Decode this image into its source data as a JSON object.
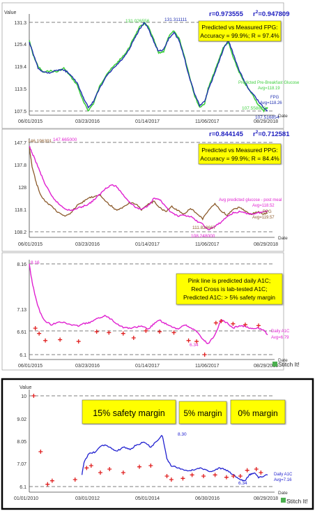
{
  "chart_data": [
    {
      "type": "line",
      "ylabel": "Value",
      "xlabel": "Date",
      "xlim": [
        "2015-06-01",
        "2018-08-29"
      ],
      "ylim": [
        107.5,
        131.3
      ],
      "y_ticks": [
        131.3,
        125.4,
        119.4,
        113.5,
        107.5
      ],
      "x_ticks": [
        "06/01/2015",
        "03/23/2016",
        "01/14/2017",
        "11/06/2017",
        "08/29/2018"
      ],
      "stats": {
        "r": "r=0.973555",
        "r2_prefix": "r",
        "r2_sup": "2",
        "r2_value": "=0.947809"
      },
      "box_lines": [
        "Predicted vs Measured FPG:",
        "Accuracy = 99.9%; R = 97.4%"
      ],
      "annotations": [
        "131.026556",
        "131.311111",
        "107.558820",
        "107.516854"
      ],
      "series": [
        {
          "name": "Predicted Pre-Breakfast Glucose",
          "avg_label": "Avg=118.19",
          "color": "#3fcf3f",
          "x": [
            "2015-06-01",
            "2015-06-20",
            "2015-07-15",
            "2015-08-10",
            "2015-09-10",
            "2015-10-15",
            "2015-11-20",
            "2015-12-20",
            "2016-01-25",
            "2016-02-25",
            "2016-03-20",
            "2016-04-15",
            "2016-05-15",
            "2016-06-20",
            "2016-07-25",
            "2016-08-20",
            "2016-09-15",
            "2016-10-10",
            "2016-11-05",
            "2016-12-01",
            "2016-12-25",
            "2017-01-14",
            "2017-02-10",
            "2017-03-05",
            "2017-03-30",
            "2017-04-25",
            "2017-05-20",
            "2017-06-15",
            "2017-07-10",
            "2017-08-05",
            "2017-09-01",
            "2017-09-25",
            "2017-10-20",
            "2017-11-06",
            "2017-12-01",
            "2017-12-25",
            "2018-01-20",
            "2018-02-15",
            "2018-03-10",
            "2018-04-05",
            "2018-05-01",
            "2018-05-25",
            "2018-06-20",
            "2018-07-15",
            "2018-08-10",
            "2018-08-29"
          ],
          "values": [
            126.5,
            122.5,
            119.5,
            117.8,
            118.3,
            118.0,
            119.0,
            117.0,
            114.5,
            110.0,
            107.6,
            109.5,
            114.0,
            117.5,
            119.5,
            121.0,
            122.5,
            124.5,
            127.5,
            130.0,
            131.0,
            130.0,
            126.5,
            123.0,
            123.5,
            127.5,
            129.0,
            127.0,
            122.5,
            117.0,
            111.5,
            108.5,
            109.5,
            113.5,
            117.0,
            120.5,
            124.5,
            126.0,
            122.0,
            118.5,
            115.5,
            113.5,
            111.5,
            109.0,
            107.6,
            108.5
          ]
        },
        {
          "name": "FPG",
          "avg_label": "Avg=118.26",
          "color": "#1f2fb0",
          "x": [
            "2015-06-01",
            "2015-06-20",
            "2015-07-15",
            "2015-08-10",
            "2015-09-10",
            "2015-10-15",
            "2015-11-20",
            "2015-12-20",
            "2016-01-25",
            "2016-02-25",
            "2016-03-20",
            "2016-04-15",
            "2016-05-15",
            "2016-06-20",
            "2016-07-25",
            "2016-08-20",
            "2016-09-15",
            "2016-10-10",
            "2016-11-05",
            "2016-12-01",
            "2016-12-25",
            "2017-01-14",
            "2017-02-10",
            "2017-03-05",
            "2017-03-30",
            "2017-04-25",
            "2017-05-20",
            "2017-06-15",
            "2017-07-10",
            "2017-08-05",
            "2017-09-01",
            "2017-09-25",
            "2017-10-20",
            "2017-11-06",
            "2017-12-01",
            "2017-12-25",
            "2018-01-20",
            "2018-02-15",
            "2018-03-10",
            "2018-04-05",
            "2018-05-01",
            "2018-05-25",
            "2018-06-20",
            "2018-07-15",
            "2018-08-10",
            "2018-08-29"
          ],
          "values": [
            126.0,
            123.0,
            119.0,
            118.0,
            117.8,
            118.5,
            118.5,
            117.5,
            115.0,
            111.0,
            108.5,
            110.0,
            113.5,
            117.0,
            119.0,
            120.5,
            122.0,
            124.0,
            127.0,
            129.5,
            131.3,
            129.5,
            126.0,
            123.5,
            124.0,
            127.0,
            128.5,
            126.5,
            122.0,
            116.5,
            112.0,
            109.0,
            110.0,
            113.0,
            116.5,
            120.0,
            124.0,
            126.5,
            123.0,
            119.0,
            116.0,
            113.5,
            112.0,
            110.0,
            108.3,
            107.6
          ]
        }
      ]
    },
    {
      "type": "line",
      "ylabel": "",
      "xlabel": "Date",
      "xlim": [
        "2015-06-01",
        "2018-08-29"
      ],
      "ylim": [
        108.2,
        147.7
      ],
      "y_ticks": [
        147.7,
        137.8,
        128.0,
        118.1,
        108.2
      ],
      "x_ticks": [
        "06/01/2015",
        "03/23/2016",
        "01/14/2017",
        "11/06/2017",
        "08/29/2018"
      ],
      "stats": {
        "r": "r=0.844145",
        "r2_prefix": "r",
        "r2_sup": "2",
        "r2_value": "=0.712581"
      },
      "box_lines": [
        "Predicted vs Measured PPG:",
        "Accuracy = 99.9%; R = 84.4%"
      ],
      "annotations": [
        "146.196391",
        "147.665000",
        "111.828667",
        "108.248000"
      ],
      "series": [
        {
          "name": "Avg predicted glucose - post meal",
          "avg_label": "Avg=118.52",
          "color": "#e020d0",
          "x": [
            "2015-06-01",
            "2015-06-15",
            "2015-07-05",
            "2015-07-25",
            "2015-08-20",
            "2015-09-20",
            "2015-10-25",
            "2015-11-25",
            "2015-12-25",
            "2016-01-25",
            "2016-02-25",
            "2016-03-23",
            "2016-04-20",
            "2016-05-20",
            "2016-06-15",
            "2016-07-15",
            "2016-08-10",
            "2016-09-10",
            "2016-10-10",
            "2016-11-10",
            "2016-12-10",
            "2017-01-14",
            "2017-02-10",
            "2017-03-10",
            "2017-04-10",
            "2017-05-10",
            "2017-06-10",
            "2017-07-10",
            "2017-08-10",
            "2017-09-10",
            "2017-10-10",
            "2017-11-06",
            "2017-12-10",
            "2018-01-10",
            "2018-02-10",
            "2018-03-10",
            "2018-04-10",
            "2018-05-10",
            "2018-06-10",
            "2018-07-10",
            "2018-08-10",
            "2018-08-29"
          ],
          "values": [
            146.0,
            143.0,
            139.0,
            134.5,
            129.0,
            124.0,
            120.5,
            118.5,
            117.5,
            118.5,
            119.5,
            120.5,
            122.5,
            125.0,
            127.5,
            129.0,
            128.0,
            124.5,
            121.5,
            119.0,
            118.0,
            120.0,
            123.0,
            122.5,
            119.0,
            116.5,
            115.0,
            115.5,
            115.0,
            113.0,
            111.5,
            109.0,
            110.5,
            112.5,
            115.0,
            116.5,
            117.0,
            116.5,
            116.0,
            116.5,
            117.0,
            117.5
          ]
        },
        {
          "name": "PPG",
          "avg_label": "Avg=119.57",
          "color": "#8b5a2b",
          "x": [
            "2015-06-01",
            "2015-06-15",
            "2015-07-05",
            "2015-07-25",
            "2015-08-20",
            "2015-09-20",
            "2015-10-25",
            "2015-11-25",
            "2015-12-25",
            "2016-01-25",
            "2016-02-25",
            "2016-03-23",
            "2016-04-20",
            "2016-05-20",
            "2016-06-15",
            "2016-07-15",
            "2016-08-10",
            "2016-09-10",
            "2016-10-10",
            "2016-11-10",
            "2016-12-10",
            "2017-01-14",
            "2017-02-10",
            "2017-03-10",
            "2017-04-10",
            "2017-05-10",
            "2017-06-10",
            "2017-07-10",
            "2017-08-10",
            "2017-09-10",
            "2017-10-10",
            "2017-11-06",
            "2017-12-10",
            "2018-01-10",
            "2018-02-10",
            "2018-03-10",
            "2018-04-10",
            "2018-05-10",
            "2018-06-10",
            "2018-07-10",
            "2018-08-10",
            "2018-08-29"
          ],
          "values": [
            145.5,
            137.0,
            130.0,
            125.0,
            121.5,
            119.5,
            116.5,
            115.0,
            116.5,
            120.0,
            121.5,
            123.0,
            124.0,
            124.5,
            121.5,
            119.5,
            117.5,
            119.0,
            121.0,
            120.5,
            118.0,
            120.5,
            121.5,
            119.0,
            117.0,
            119.5,
            117.5,
            116.0,
            118.5,
            116.5,
            114.0,
            117.5,
            120.5,
            117.5,
            115.5,
            118.0,
            119.0,
            117.5,
            116.0,
            117.0,
            116.0,
            116.5
          ]
        }
      ]
    },
    {
      "type": "line",
      "ylabel": "",
      "xlabel": "Date",
      "xlim": [
        "2015-06-01",
        "2018-08-29"
      ],
      "ylim": [
        6.1,
        8.16
      ],
      "y_ticks": [
        8.16,
        7.13,
        6.61,
        6.1
      ],
      "x_ticks": [
        "06/01/2015",
        "03/23/2016",
        "01/14/2017",
        "11/06/2017",
        "08/29/2018"
      ],
      "box_lines": [
        "Pink line is predicted daily A1C;",
        "Red Cross is lab-tested A1C;",
        "Predicted A1C:  > 5% safety margin"
      ],
      "annotations": [
        "8.16",
        "6.34"
      ],
      "series": [
        {
          "name": "Daily A1C",
          "avg_label": "Avg=6.79",
          "color": "#e020d0",
          "x": [
            "2015-06-01",
            "2015-06-15",
            "2015-07-05",
            "2015-07-25",
            "2015-08-20",
            "2015-09-20",
            "2015-10-25",
            "2015-11-25",
            "2015-12-25",
            "2016-01-25",
            "2016-02-25",
            "2016-03-23",
            "2016-04-20",
            "2016-05-20",
            "2016-06-15",
            "2016-07-15",
            "2016-08-10",
            "2016-09-10",
            "2016-10-10",
            "2016-11-10",
            "2016-12-10",
            "2017-01-14",
            "2017-02-10",
            "2017-03-10",
            "2017-04-10",
            "2017-05-10",
            "2017-06-10",
            "2017-07-10",
            "2017-08-10",
            "2017-09-10",
            "2017-10-10",
            "2017-11-06",
            "2017-12-10",
            "2018-01-10",
            "2018-02-10",
            "2018-03-10",
            "2018-04-10",
            "2018-05-10",
            "2018-06-10",
            "2018-07-10",
            "2018-08-10",
            "2018-08-29"
          ],
          "values": [
            8.16,
            7.75,
            7.35,
            7.05,
            6.85,
            6.78,
            6.85,
            6.82,
            6.78,
            6.75,
            6.8,
            6.82,
            6.88,
            6.95,
            6.98,
            6.9,
            6.8,
            6.72,
            6.7,
            6.72,
            6.74,
            6.68,
            6.8,
            6.88,
            6.8,
            6.72,
            6.68,
            6.78,
            6.72,
            6.62,
            6.45,
            6.34,
            6.55,
            6.88,
            6.82,
            6.7,
            6.76,
            6.74,
            6.68,
            6.7,
            6.66,
            6.55
          ]
        },
        {
          "name": "Lab-tested A1C",
          "color": "#e02020",
          "marker": "cross",
          "x": [
            "2015-07-01",
            "2015-07-20",
            "2015-08-20",
            "2015-11-01",
            "2016-02-01",
            "2016-05-01",
            "2016-07-01",
            "2016-09-10",
            "2016-11-01",
            "2017-01-01",
            "2017-03-10",
            "2017-05-20",
            "2017-08-01",
            "2017-09-10",
            "2017-10-20",
            "2017-12-15",
            "2018-01-10",
            "2018-03-10",
            "2018-05-10",
            "2018-07-15"
          ],
          "values": [
            6.7,
            6.58,
            6.42,
            6.44,
            6.4,
            6.62,
            6.6,
            6.58,
            6.48,
            6.64,
            6.62,
            6.6,
            6.42,
            6.4,
            6.1,
            6.82,
            6.86,
            6.8,
            6.78,
            6.76
          ]
        }
      ]
    },
    {
      "type": "line",
      "ylabel": "Value",
      "xlabel": "Date",
      "xlim": [
        "2010-01-01",
        "2018-08-29"
      ],
      "ylim": [
        6.1,
        10.0
      ],
      "y_ticks": [
        10.0,
        9.02,
        8.05,
        7.07,
        6.1
      ],
      "x_ticks": [
        "01/01/2010",
        "03/01/2012",
        "05/01/2014",
        "06/30/2016",
        "08/29/2018"
      ],
      "margin_labels": [
        "15% safety margin",
        "5% margin",
        "0% margin"
      ],
      "annotations": [
        "8.30",
        "6.34"
      ],
      "series": [
        {
          "name": "Daily A1C",
          "avg_label": "Avg=7.16",
          "color": "#2020d0",
          "x": [
            "2011-12-01",
            "2012-01-01",
            "2012-03-01",
            "2012-06-01",
            "2012-09-01",
            "2012-12-01",
            "2013-03-01",
            "2013-06-01",
            "2013-09-01",
            "2013-12-01",
            "2014-03-01",
            "2014-06-01",
            "2014-09-01",
            "2014-11-01",
            "2015-01-01",
            "2015-03-01",
            "2015-06-01",
            "2015-09-01",
            "2015-12-01",
            "2016-03-01",
            "2016-06-01",
            "2016-09-01",
            "2016-12-01",
            "2017-03-01",
            "2017-06-01",
            "2017-09-01",
            "2017-11-01",
            "2018-01-01",
            "2018-03-01",
            "2018-05-01",
            "2018-08-29"
          ],
          "values": [
            6.6,
            7.2,
            7.5,
            7.6,
            7.9,
            7.8,
            7.6,
            7.8,
            7.7,
            7.9,
            8.0,
            7.8,
            8.1,
            8.3,
            7.3,
            7.0,
            6.9,
            6.8,
            6.8,
            6.9,
            6.8,
            6.75,
            6.9,
            6.8,
            6.6,
            6.4,
            6.34,
            6.6,
            6.7,
            6.5,
            6.6
          ]
        },
        {
          "name": "Lab-tested A1C",
          "color": "#e02020",
          "marker": "cross",
          "x": [
            "2010-03-01",
            "2010-06-01",
            "2010-09-01",
            "2010-11-01",
            "2011-09-01",
            "2012-02-01",
            "2012-04-01",
            "2012-08-01",
            "2012-12-01",
            "2013-06-01",
            "2014-01-01",
            "2014-06-01",
            "2015-01-01",
            "2015-03-01",
            "2015-08-01",
            "2015-12-01",
            "2016-05-01",
            "2016-10-01",
            "2017-03-01",
            "2017-06-01",
            "2017-09-01",
            "2017-12-01",
            "2018-04-01",
            "2018-06-01"
          ],
          "values": [
            10.0,
            7.6,
            6.2,
            6.35,
            6.4,
            6.9,
            7.0,
            6.7,
            6.85,
            6.7,
            6.95,
            7.0,
            6.55,
            6.4,
            6.45,
            6.6,
            6.55,
            6.6,
            6.5,
            6.55,
            6.55,
            6.8,
            6.85,
            6.7
          ]
        }
      ]
    }
  ],
  "watermarks": [
    "Stitch It!",
    "Stitch It!"
  ]
}
